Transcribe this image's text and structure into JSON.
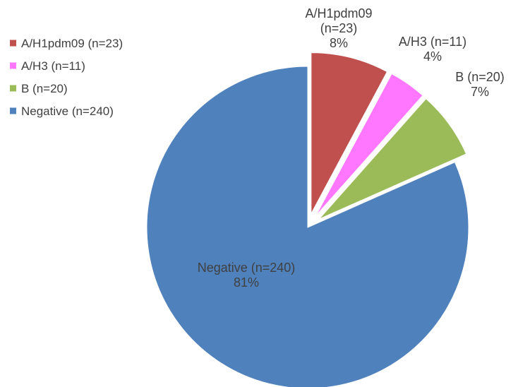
{
  "chart_data": {
    "type": "pie",
    "title": "",
    "legend_position": "top-left",
    "exploded": true,
    "start_angle_deg": 0,
    "direction": "clockwise",
    "slices": [
      {
        "name": "A/H1pdm09",
        "legend_label": "A/H1pdm09 (n=23)",
        "count": 23,
        "percent_label": "8%",
        "color": "#C0504D",
        "label_lines": [
          "A/H1pdm09",
          "(n=23)",
          "8%"
        ]
      },
      {
        "name": "A/H3",
        "legend_label": "A/H3 (n=11)",
        "count": 11,
        "percent_label": "4%",
        "color": "#FF77FF",
        "label_lines": [
          "A/H3 (n=11)",
          "4%"
        ]
      },
      {
        "name": "B",
        "legend_label": "B (n=20)",
        "count": 20,
        "percent_label": "7%",
        "color": "#9BBB59",
        "label_lines": [
          "B (n=20)",
          "7%"
        ]
      },
      {
        "name": "Negative",
        "legend_label": "Negative (n=240)",
        "count": 240,
        "percent_label": "81%",
        "color": "#4F81BD",
        "label_lines": [
          "Negative (n=240)",
          "81%"
        ]
      }
    ]
  }
}
